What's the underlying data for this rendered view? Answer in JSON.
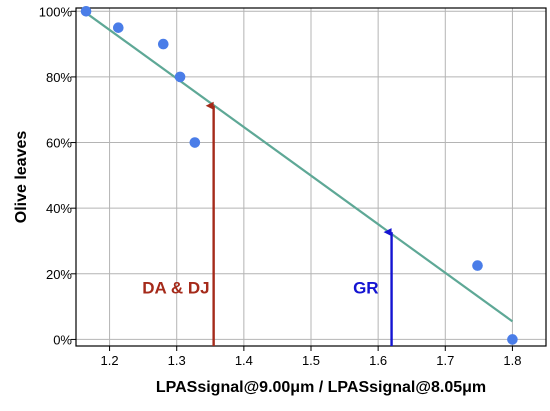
{
  "chart_data": {
    "type": "scatter",
    "title": "",
    "xlabel": "LPASsignal@9.00μm / LPASsignal@8.05μm",
    "ylabel": "Olive leaves",
    "xlim": [
      1.15,
      1.85
    ],
    "ylim": [
      -2,
      101
    ],
    "x_ticks": [
      1.2,
      1.3,
      1.4,
      1.5,
      1.6,
      1.7,
      1.8
    ],
    "y_ticks": [
      0,
      20,
      40,
      60,
      80,
      100
    ],
    "y_tick_labels": [
      "0%",
      "20%",
      "40%",
      "60%",
      "80%",
      "100%"
    ],
    "grid": true,
    "colors": {
      "points": "#4a7de8",
      "fit_line": "#5ea896",
      "arrow_da": "#a52a1a",
      "arrow_gr": "#1414d2"
    },
    "points": [
      {
        "x": 1.165,
        "y": 100
      },
      {
        "x": 1.213,
        "y": 95
      },
      {
        "x": 1.28,
        "y": 90
      },
      {
        "x": 1.305,
        "y": 80
      },
      {
        "x": 1.327,
        "y": 60
      },
      {
        "x": 1.748,
        "y": 22.5
      },
      {
        "x": 1.8,
        "y": 0
      }
    ],
    "fit_line": {
      "x": [
        1.165,
        1.8
      ],
      "y": [
        99.5,
        5.5
      ]
    },
    "annotations": [
      {
        "text": "DA & DJ",
        "x": 1.355,
        "y_from": 0,
        "y_to": 71.5,
        "color": "#a52a1a"
      },
      {
        "text": "GR",
        "x": 1.62,
        "y_from": 0,
        "y_to": 33,
        "color": "#1414d2"
      }
    ]
  }
}
